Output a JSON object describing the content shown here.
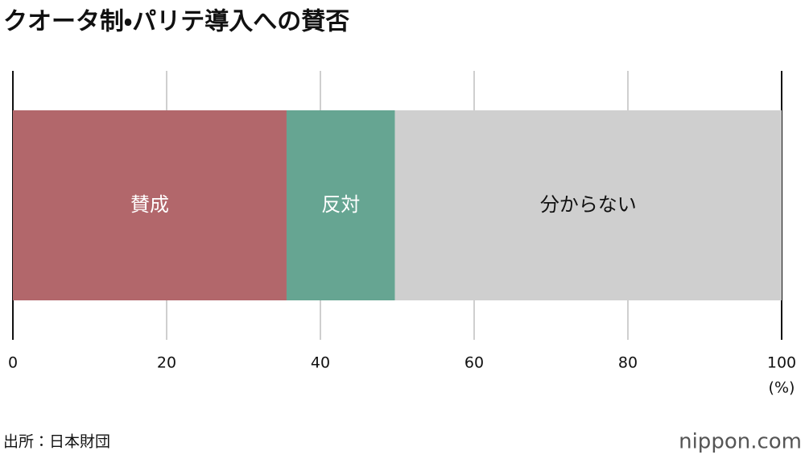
{
  "chart_data": {
    "type": "stacked_bar",
    "title": "クオータ制・パリテ導入への賛否",
    "series": [
      {
        "name": "賛成",
        "color": "#b2676b",
        "values": [
          35.6
        ]
      },
      {
        "name": "反対",
        "color": "#66a592",
        "values": [
          14.1
        ]
      },
      {
        "name": "分からない",
        "color": "#cfcfcf",
        "values": [
          50.3
        ]
      }
    ],
    "xlim": [
      0,
      100
    ],
    "xticks": [
      0,
      20,
      40,
      60,
      80,
      100
    ],
    "xlabel": "(%)",
    "grid": true,
    "source": "出所：日本財団",
    "brand": "nippon.com"
  }
}
